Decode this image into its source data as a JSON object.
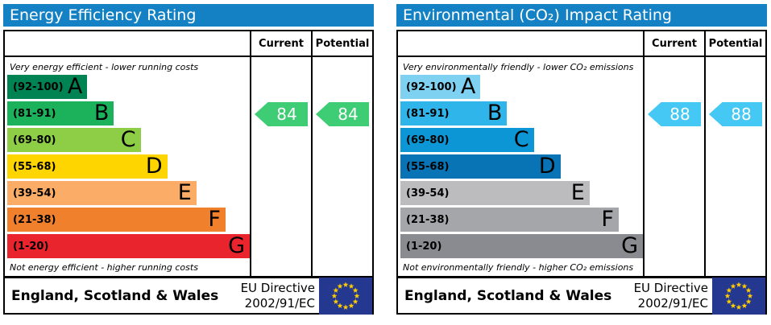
{
  "panels": [
    {
      "title": "Energy Efficiency Rating",
      "title_color": "#1581c5",
      "header": {
        "current": "Current",
        "potential": "Potential"
      },
      "top_note": "Very energy efficient - lower running costs",
      "bottom_note": "Not energy efficient - higher running costs",
      "bands": [
        {
          "letter": "A",
          "range": "(92-100)",
          "color": "#008352",
          "width_pct": 33
        },
        {
          "letter": "B",
          "range": "(81-91)",
          "color": "#1cb25b",
          "width_pct": 44
        },
        {
          "letter": "C",
          "range": "(69-80)",
          "color": "#8dce46",
          "width_pct": 55
        },
        {
          "letter": "D",
          "range": "(55-68)",
          "color": "#ffd500",
          "width_pct": 66
        },
        {
          "letter": "E",
          "range": "(39-54)",
          "color": "#fbad67",
          "width_pct": 78
        },
        {
          "letter": "F",
          "range": "(21-38)",
          "color": "#f1802d",
          "width_pct": 90
        },
        {
          "letter": "G",
          "range": "(1-20)",
          "color": "#e9242d",
          "width_pct": 100
        }
      ],
      "current": {
        "value": "84",
        "band_index": 1,
        "color": "#3ecd74"
      },
      "potential": {
        "value": "84",
        "band_index": 1,
        "color": "#3ecd74"
      },
      "footer": {
        "region": "England, Scotland & Wales",
        "directive_line1": "EU Directive",
        "directive_line2": "2002/91/EC",
        "flag_bg": "#24388f",
        "flag_star": "#ffcc00"
      }
    },
    {
      "title": "Environmental (CO₂) Impact Rating",
      "title_color": "#1581c5",
      "header": {
        "current": "Current",
        "potential": "Potential"
      },
      "top_note": "Very environmentally friendly - lower CO₂ emissions",
      "bottom_note": "Not environmentally friendly - higher CO₂ emissions",
      "bands": [
        {
          "letter": "A",
          "range": "(92-100)",
          "color": "#7fd1f2",
          "width_pct": 33
        },
        {
          "letter": "B",
          "range": "(81-91)",
          "color": "#2fb5e9",
          "width_pct": 44
        },
        {
          "letter": "C",
          "range": "(69-80)",
          "color": "#0d96d6",
          "width_pct": 55
        },
        {
          "letter": "D",
          "range": "(55-68)",
          "color": "#0873b5",
          "width_pct": 66
        },
        {
          "letter": "E",
          "range": "(39-54)",
          "color": "#bcbcbe",
          "width_pct": 78
        },
        {
          "letter": "F",
          "range": "(21-38)",
          "color": "#a5a6a9",
          "width_pct": 90
        },
        {
          "letter": "G",
          "range": "(1-20)",
          "color": "#8a8b90",
          "width_pct": 100
        }
      ],
      "current": {
        "value": "88",
        "band_index": 1,
        "color": "#45c8f3"
      },
      "potential": {
        "value": "88",
        "band_index": 1,
        "color": "#45c8f3"
      },
      "footer": {
        "region": "England, Scotland & Wales",
        "directive_line1": "EU Directive",
        "directive_line2": "2002/91/EC",
        "flag_bg": "#24388f",
        "flag_star": "#ffcc00"
      }
    }
  ],
  "chart_data": [
    {
      "type": "bar",
      "title": "Energy Efficiency Rating",
      "categories": [
        "A (92-100)",
        "B (81-91)",
        "C (69-80)",
        "D (55-68)",
        "E (39-54)",
        "F (21-38)",
        "G (1-20)"
      ],
      "values": [
        33,
        44,
        55,
        66,
        78,
        90,
        100
      ],
      "current_rating": 84,
      "potential_rating": 84,
      "current_band": "B",
      "potential_band": "B",
      "xlabel": "",
      "ylabel": "",
      "notes": [
        "Very energy efficient - lower running costs",
        "Not energy efficient - higher running costs"
      ],
      "legend_position": "none"
    },
    {
      "type": "bar",
      "title": "Environmental (CO₂) Impact Rating",
      "categories": [
        "A (92-100)",
        "B (81-91)",
        "C (69-80)",
        "D (55-68)",
        "E (39-54)",
        "F (21-38)",
        "G (1-20)"
      ],
      "values": [
        33,
        44,
        55,
        66,
        78,
        90,
        100
      ],
      "current_rating": 88,
      "potential_rating": 88,
      "current_band": "B",
      "potential_band": "B",
      "xlabel": "",
      "ylabel": "",
      "notes": [
        "Very environmentally friendly - lower CO₂ emissions",
        "Not environmentally friendly - higher CO₂ emissions"
      ],
      "legend_position": "none"
    }
  ]
}
